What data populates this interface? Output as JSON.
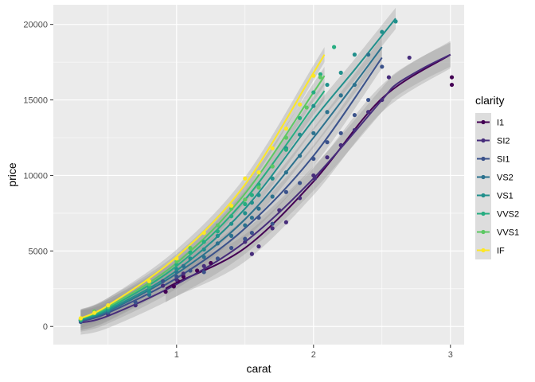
{
  "chart_data": {
    "type": "scatter",
    "xlabel": "carat",
    "ylabel": "price",
    "xlim": [
      0.1,
      3.1
    ],
    "ylim": [
      -1200,
      21300
    ],
    "x_ticks": [
      1,
      2,
      3
    ],
    "x_tick_labels": [
      "1",
      "2",
      "3"
    ],
    "y_ticks": [
      0,
      5000,
      10000,
      15000,
      20000
    ],
    "y_tick_labels": [
      "0",
      "5000",
      "10000",
      "15000",
      "20000"
    ],
    "grid": true,
    "panel_background": "#EBEBEB",
    "smooth_lines": true,
    "confidence_bands": true,
    "legend": {
      "title": "clarity",
      "position": "right",
      "entries": [
        "I1",
        "SI2",
        "SI1",
        "VS2",
        "VS1",
        "VVS2",
        "VVS1",
        "IF"
      ]
    },
    "series": [
      {
        "name": "I1",
        "color": "#440154",
        "points": [
          [
            0.92,
            2300
          ],
          [
            0.98,
            2650
          ],
          [
            1.01,
            3000
          ],
          [
            1.05,
            3300
          ],
          [
            1.15,
            3700
          ],
          [
            1.25,
            4200
          ],
          [
            3.01,
            16500
          ],
          [
            3.01,
            16000
          ]
        ],
        "trend": [
          [
            0.92,
            2500
          ],
          [
            1.0,
            2900
          ],
          [
            1.5,
            5200
          ],
          [
            2.0,
            9600
          ],
          [
            2.5,
            15100
          ],
          [
            3.0,
            18000
          ]
        ],
        "band": 900
      },
      {
        "name": "SI2",
        "color": "#472D7B",
        "points": [
          [
            0.3,
            400
          ],
          [
            0.5,
            800
          ],
          [
            0.7,
            1400
          ],
          [
            0.9,
            2700
          ],
          [
            1.0,
            3100
          ],
          [
            1.05,
            3500
          ],
          [
            1.2,
            4000
          ],
          [
            1.5,
            5600
          ],
          [
            1.55,
            4800
          ],
          [
            1.6,
            5300
          ],
          [
            1.7,
            6500
          ],
          [
            1.75,
            7700
          ],
          [
            1.8,
            6900
          ],
          [
            1.9,
            8500
          ],
          [
            2.0,
            10000
          ],
          [
            2.01,
            9800
          ],
          [
            2.1,
            11200
          ],
          [
            2.2,
            12000
          ],
          [
            2.3,
            13000
          ],
          [
            2.4,
            14200
          ],
          [
            2.5,
            15000
          ],
          [
            2.55,
            16500
          ],
          [
            2.7,
            17800
          ]
        ],
        "trend": [
          [
            0.3,
            250
          ],
          [
            0.5,
            700
          ],
          [
            1.0,
            2800
          ],
          [
            1.5,
            5600
          ],
          [
            2.0,
            9800
          ],
          [
            2.5,
            15000
          ],
          [
            2.6,
            16000
          ],
          [
            2.8,
            17100
          ],
          [
            3.0,
            18000
          ]
        ],
        "band": 800
      },
      {
        "name": "SI1",
        "color": "#3B528B",
        "points": [
          [
            0.3,
            300
          ],
          [
            0.5,
            900
          ],
          [
            0.7,
            1600
          ],
          [
            0.9,
            3000
          ],
          [
            1.0,
            3300
          ],
          [
            1.1,
            3700
          ],
          [
            1.2,
            3600
          ],
          [
            1.3,
            4500
          ],
          [
            1.4,
            5200
          ],
          [
            1.5,
            5800
          ],
          [
            1.55,
            6200
          ],
          [
            1.6,
            7200
          ],
          [
            1.7,
            6800
          ],
          [
            1.8,
            8900
          ],
          [
            1.9,
            9500
          ],
          [
            2.0,
            11100
          ],
          [
            2.1,
            12200
          ],
          [
            2.2,
            12800
          ],
          [
            2.3,
            14000
          ],
          [
            2.4,
            15000
          ],
          [
            2.5,
            17200
          ]
        ],
        "trend": [
          [
            0.3,
            350
          ],
          [
            0.5,
            900
          ],
          [
            1.0,
            3200
          ],
          [
            1.5,
            6500
          ],
          [
            2.0,
            11300
          ],
          [
            2.5,
            17800
          ]
        ],
        "band": 700
      },
      {
        "name": "VS2",
        "color": "#2C728E",
        "points": [
          [
            0.3,
            400
          ],
          [
            0.5,
            1000
          ],
          [
            0.8,
            2100
          ],
          [
            1.0,
            3600
          ],
          [
            1.05,
            4000
          ],
          [
            1.2,
            4600
          ],
          [
            1.3,
            5500
          ],
          [
            1.4,
            6000
          ],
          [
            1.5,
            6700
          ],
          [
            1.55,
            7200
          ],
          [
            1.6,
            7800
          ],
          [
            1.7,
            8600
          ],
          [
            1.8,
            10200
          ],
          [
            1.9,
            11300
          ],
          [
            2.0,
            12800
          ],
          [
            2.1,
            14200
          ],
          [
            2.2,
            15300
          ],
          [
            2.3,
            16000
          ],
          [
            2.4,
            18000
          ]
        ],
        "trend": [
          [
            0.3,
            400
          ],
          [
            0.5,
            1000
          ],
          [
            1.0,
            3500
          ],
          [
            1.5,
            7100
          ],
          [
            2.0,
            12500
          ],
          [
            2.5,
            18500
          ]
        ],
        "band": 650
      },
      {
        "name": "VS1",
        "color": "#21908C",
        "points": [
          [
            0.3,
            400
          ],
          [
            0.5,
            1100
          ],
          [
            0.8,
            2300
          ],
          [
            1.0,
            3800
          ],
          [
            1.1,
            4500
          ],
          [
            1.2,
            5100
          ],
          [
            1.3,
            6000
          ],
          [
            1.4,
            6800
          ],
          [
            1.5,
            7500
          ],
          [
            1.55,
            8200
          ],
          [
            1.6,
            8700
          ],
          [
            1.7,
            9800
          ],
          [
            1.8,
            11800
          ],
          [
            1.9,
            12700
          ],
          [
            2.0,
            14600
          ],
          [
            2.1,
            16000
          ],
          [
            2.2,
            16800
          ],
          [
            2.3,
            18000
          ],
          [
            2.5,
            19500
          ],
          [
            2.6,
            20200
          ]
        ],
        "trend": [
          [
            0.3,
            450
          ],
          [
            0.5,
            1100
          ],
          [
            1.0,
            3700
          ],
          [
            1.5,
            7800
          ],
          [
            2.0,
            13700
          ],
          [
            2.3,
            17000
          ],
          [
            2.6,
            20400
          ]
        ],
        "band": 700
      },
      {
        "name": "VVS2",
        "color": "#27AD81",
        "points": [
          [
            0.3,
            450
          ],
          [
            0.5,
            1200
          ],
          [
            0.8,
            2600
          ],
          [
            1.0,
            4100
          ],
          [
            1.1,
            4900
          ],
          [
            1.2,
            5600
          ],
          [
            1.3,
            6300
          ],
          [
            1.4,
            7300
          ],
          [
            1.5,
            8100
          ],
          [
            1.55,
            8700
          ],
          [
            1.6,
            9400
          ],
          [
            1.7,
            10600
          ],
          [
            1.8,
            11700
          ],
          [
            1.9,
            13800
          ],
          [
            2.0,
            15500
          ],
          [
            2.05,
            16700
          ],
          [
            2.15,
            18500
          ]
        ],
        "trend": [
          [
            0.3,
            500
          ],
          [
            0.5,
            1200
          ],
          [
            1.0,
            4000
          ],
          [
            1.5,
            8400
          ],
          [
            2.0,
            14600
          ],
          [
            2.08,
            15600
          ]
        ],
        "band": 600
      },
      {
        "name": "VVS1",
        "color": "#5DC863",
        "points": [
          [
            0.3,
            500
          ],
          [
            0.4,
            1000
          ],
          [
            0.5,
            1300
          ],
          [
            0.8,
            2800
          ],
          [
            1.0,
            4300
          ],
          [
            1.1,
            5200
          ],
          [
            1.3,
            6700
          ],
          [
            1.4,
            7800
          ],
          [
            1.5,
            8400
          ],
          [
            1.6,
            9200
          ],
          [
            1.7,
            10600
          ],
          [
            1.8,
            12500
          ],
          [
            1.95,
            14500
          ],
          [
            2.05,
            16500
          ]
        ],
        "trend": [
          [
            0.3,
            520
          ],
          [
            0.5,
            1300
          ],
          [
            1.0,
            4200
          ],
          [
            1.5,
            8800
          ],
          [
            2.0,
            15500
          ],
          [
            2.08,
            16600
          ]
        ],
        "band": 600
      },
      {
        "name": "IF",
        "color": "#FDE725",
        "points": [
          [
            0.3,
            550
          ],
          [
            0.4,
            900
          ],
          [
            0.5,
            1400
          ],
          [
            0.8,
            3000
          ],
          [
            1.0,
            4500
          ],
          [
            1.2,
            6200
          ],
          [
            1.4,
            8000
          ],
          [
            1.5,
            9800
          ],
          [
            1.6,
            10200
          ],
          [
            1.7,
            11800
          ],
          [
            1.8,
            13100
          ],
          [
            1.9,
            14700
          ],
          [
            2.0,
            16600
          ]
        ],
        "trend": [
          [
            0.3,
            550
          ],
          [
            0.5,
            1400
          ],
          [
            1.0,
            4600
          ],
          [
            1.5,
            9400
          ],
          [
            2.0,
            16800
          ],
          [
            2.08,
            18000
          ]
        ],
        "band": 500
      }
    ]
  }
}
